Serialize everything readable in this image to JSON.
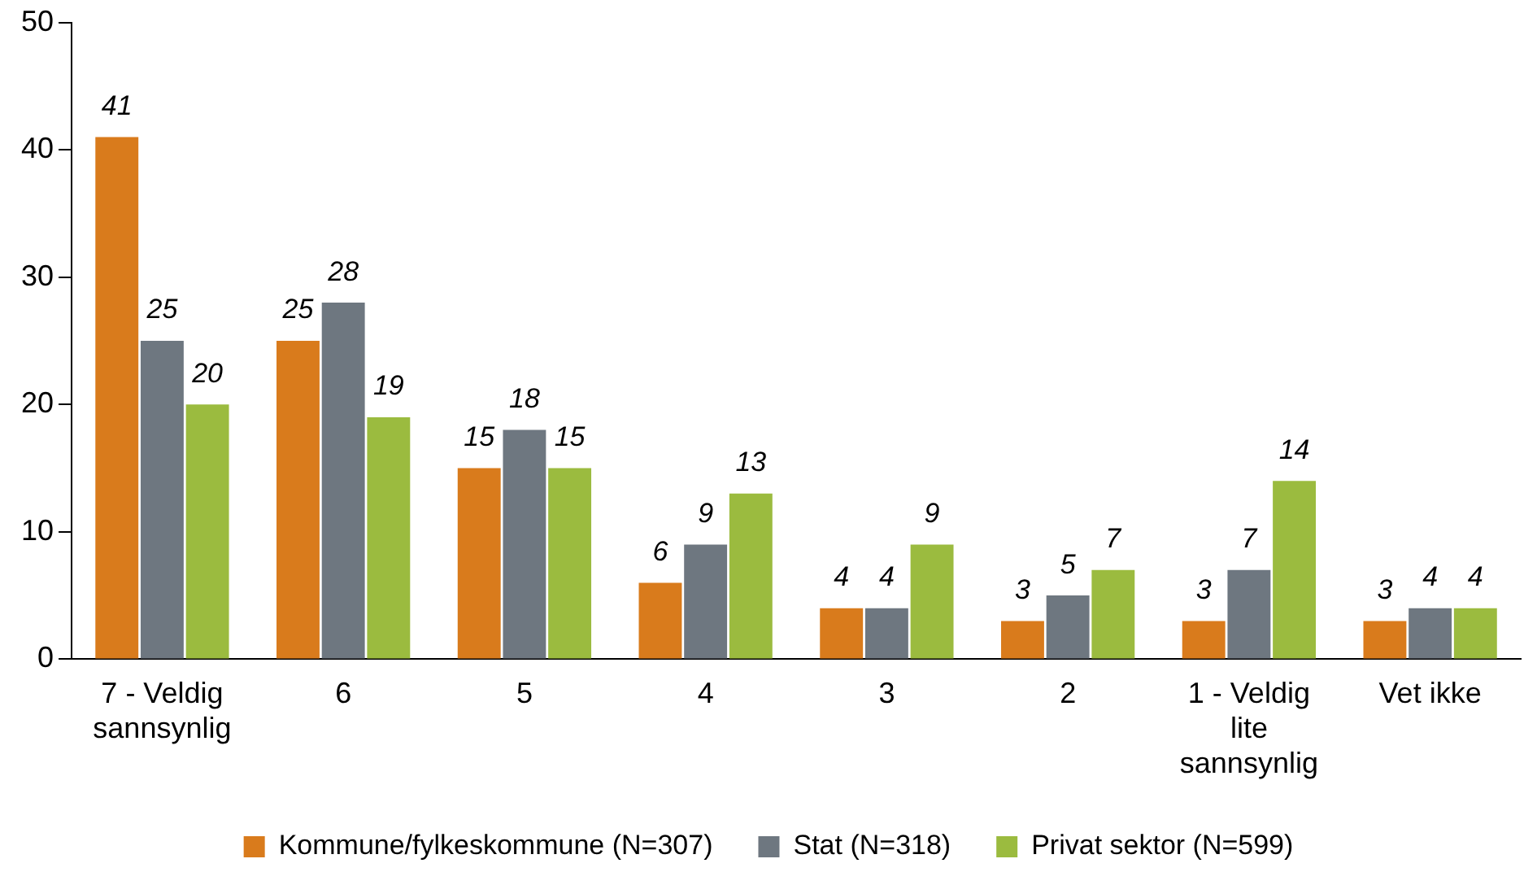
{
  "chart_data": {
    "type": "bar",
    "categories": [
      "7 - Veldig sannsynlig",
      "6",
      "5",
      "4",
      "3",
      "2",
      "1 - Veldig lite sannsynlig",
      "Vet ikke"
    ],
    "series": [
      {
        "name": "Kommune/fylkeskommune (N=307)",
        "color": "#d97b1c",
        "values": [
          41,
          25,
          15,
          6,
          4,
          3,
          3,
          3
        ]
      },
      {
        "name": "Stat (N=318)",
        "color": "#6e7780",
        "values": [
          25,
          28,
          18,
          9,
          4,
          5,
          7,
          4
        ]
      },
      {
        "name": "Privat sektor (N=599)",
        "color": "#9bbb3f",
        "values": [
          20,
          19,
          15,
          13,
          9,
          7,
          14,
          4
        ]
      }
    ],
    "ylim": [
      0,
      50
    ],
    "yticks": [
      0,
      10,
      20,
      30,
      40,
      50
    ],
    "grid": false,
    "legend": "bottom",
    "data_labels": true
  }
}
